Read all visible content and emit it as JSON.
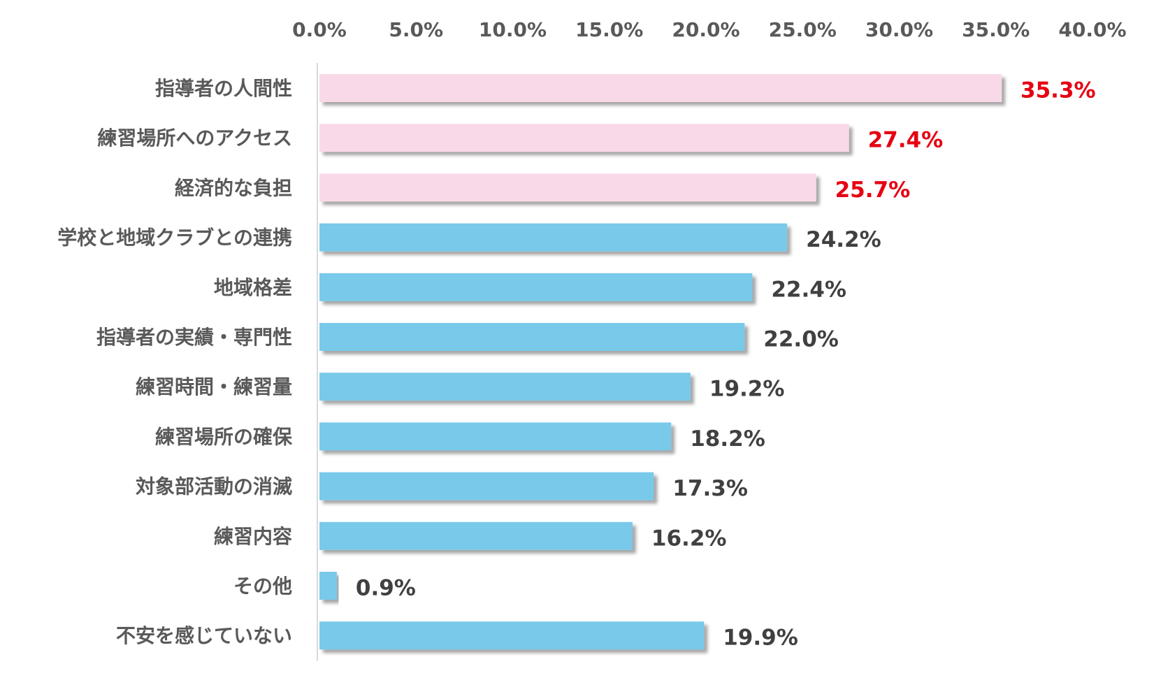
{
  "chart_data": {
    "type": "bar",
    "orientation": "horizontal",
    "xlim": [
      0,
      40
    ],
    "x_ticks": [
      "0.0%",
      "5.0%",
      "10.0%",
      "15.0%",
      "20.0%",
      "25.0%",
      "30.0%",
      "35.0%",
      "40.0%"
    ],
    "x_tick_values": [
      0,
      5,
      10,
      15,
      20,
      25,
      30,
      35,
      40
    ],
    "x_axis_position": "top",
    "grid": false,
    "legend": "none",
    "colors": {
      "highlight_bar": "#f9d9e8",
      "normal_bar": "#79c9ea",
      "highlight_label": "#e60012",
      "normal_label": "#404040"
    },
    "categories": [
      "指導者の人間性",
      "練習場所へのアクセス",
      "経済的な負担",
      "学校と地域クラブとの連携",
      "地域格差",
      "指導者の実績・専門性",
      "練習時間・練習量",
      "練習場所の確保",
      "対象部活動の消滅",
      "練習内容",
      "その他",
      "不安を感じていない"
    ],
    "values": [
      35.3,
      27.4,
      25.7,
      24.2,
      22.4,
      22.0,
      19.2,
      18.2,
      17.3,
      16.2,
      0.9,
      19.9
    ],
    "value_labels": [
      "35.3%",
      "27.4%",
      "25.7%",
      "24.2%",
      "22.4%",
      "22.0%",
      "19.2%",
      "18.2%",
      "17.3%",
      "16.2%",
      "0.9%",
      "19.9%"
    ],
    "highlighted": [
      true,
      true,
      true,
      false,
      false,
      false,
      false,
      false,
      false,
      false,
      false,
      false
    ]
  }
}
